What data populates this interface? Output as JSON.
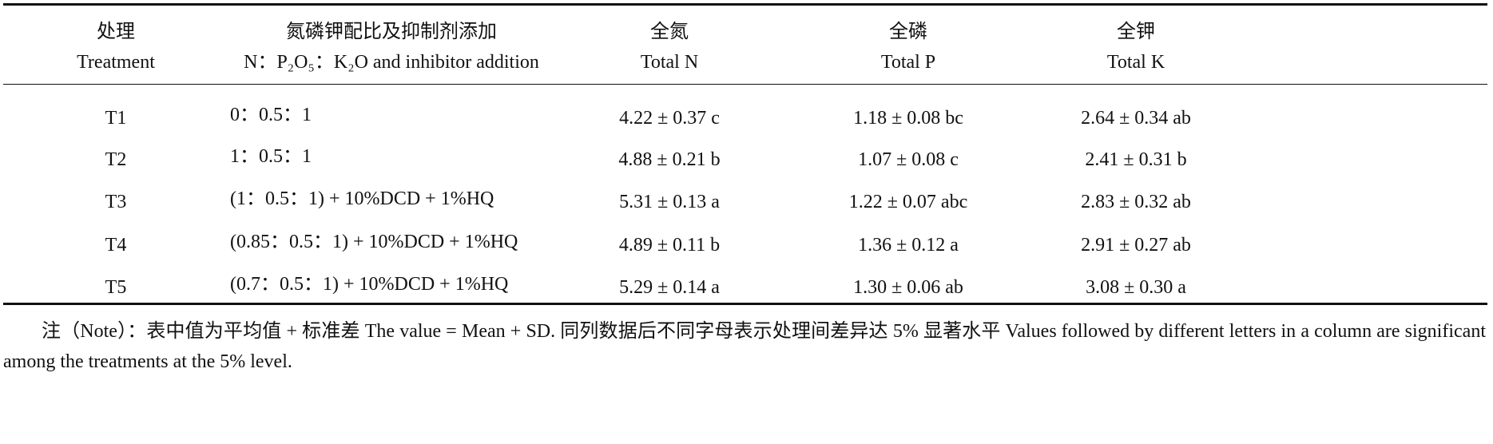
{
  "table": {
    "header": [
      [
        "处理",
        "Treatment"
      ],
      [
        "氮磷钾配比及抑制剂添加",
        "N：P₂O₅：K₂O and inhibitor addition"
      ],
      [
        "全氮",
        "Total N"
      ],
      [
        "全磷",
        "Total P"
      ],
      [
        "全钾",
        "Total K"
      ]
    ],
    "rows": [
      [
        "T1",
        "0：0.5：1",
        "4.22 ± 0.37 c",
        "1.18 ± 0.08 bc",
        "2.64 ± 0.34 ab"
      ],
      [
        "T2",
        "1：0.5：1",
        "4.88 ± 0.21 b",
        "1.07 ± 0.08 c",
        "2.41 ± 0.31 b"
      ],
      [
        "T3",
        "(1：0.5：1) + 10%DCD + 1%HQ",
        "5.31 ± 0.13 a",
        "1.22 ± 0.07 abc",
        "2.83 ± 0.32 ab"
      ],
      [
        "T4",
        "(0.85：0.5：1) + 10%DCD + 1%HQ",
        "4.89 ± 0.11 b",
        "1.36 ± 0.12 a",
        "2.91 ± 0.27 ab"
      ],
      [
        "T5",
        "(0.7：0.5：1) + 10%DCD + 1%HQ",
        "5.29 ± 0.14 a",
        "1.30 ± 0.06 ab",
        "3.08 ± 0.30 a"
      ]
    ]
  },
  "note": "注（Note）：表中值为平均值 + 标准差 The value = Mean + SD. 同列数据后不同字母表示处理间差异达 5% 显著水平 Values followed by different letters in a column are significant among the treatments at the 5% level."
}
